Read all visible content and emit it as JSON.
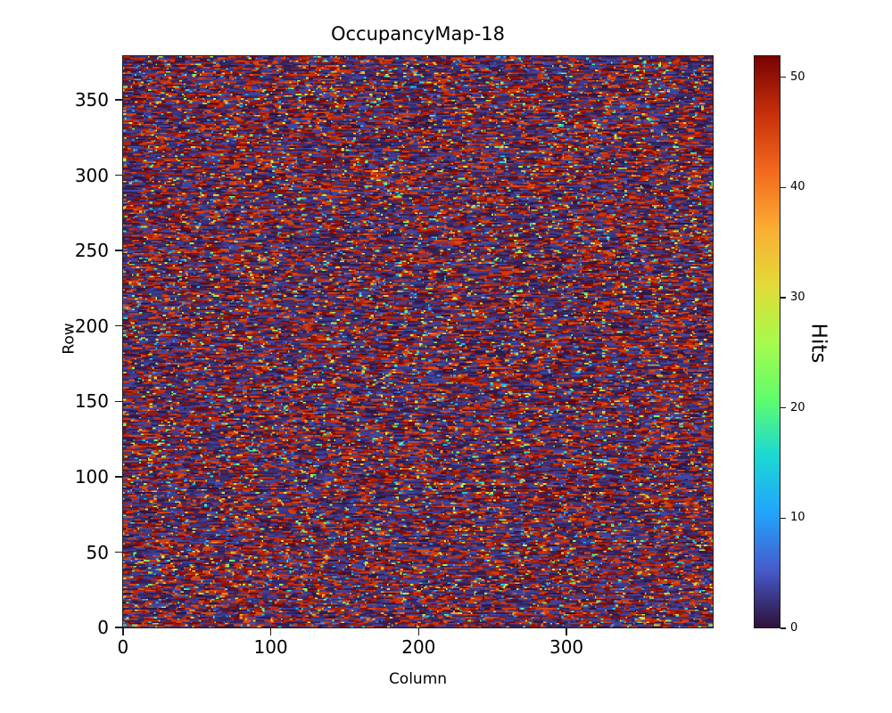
{
  "chart_data": {
    "type": "heatmap",
    "title": "OccupancyMap-18",
    "xlabel": "Column",
    "ylabel": "Row",
    "colorbar_label": "Hits",
    "x_ticks": [
      0,
      100,
      200,
      300
    ],
    "y_ticks": [
      0,
      50,
      100,
      150,
      200,
      250,
      300,
      350
    ],
    "colorbar_ticks": [
      0,
      10,
      20,
      30,
      40,
      50
    ],
    "x_range": [
      0,
      400
    ],
    "y_range": [
      0,
      380
    ],
    "value_range": [
      0,
      52
    ],
    "grid_cols": 400,
    "grid_rows": 380,
    "colormap": "turbo",
    "legend_position": "right-colorbar",
    "grid": false,
    "pattern_description": "dense random speckle occupancy map; values bimodal, concentrated near 0 (dark navy background) and near the maximum (dark red / bright red short horizontal dashes), with sparse mid-range hits appearing as isolated cyan, green, yellow and orange dots",
    "seed": 18,
    "distribution": {
      "low_fraction": 0.44,
      "low_range": [
        0,
        4
      ],
      "high_fraction": 0.4,
      "high_range": [
        44,
        52
      ],
      "mid_fraction": 0.16,
      "mid_range": [
        5,
        44
      ]
    }
  }
}
